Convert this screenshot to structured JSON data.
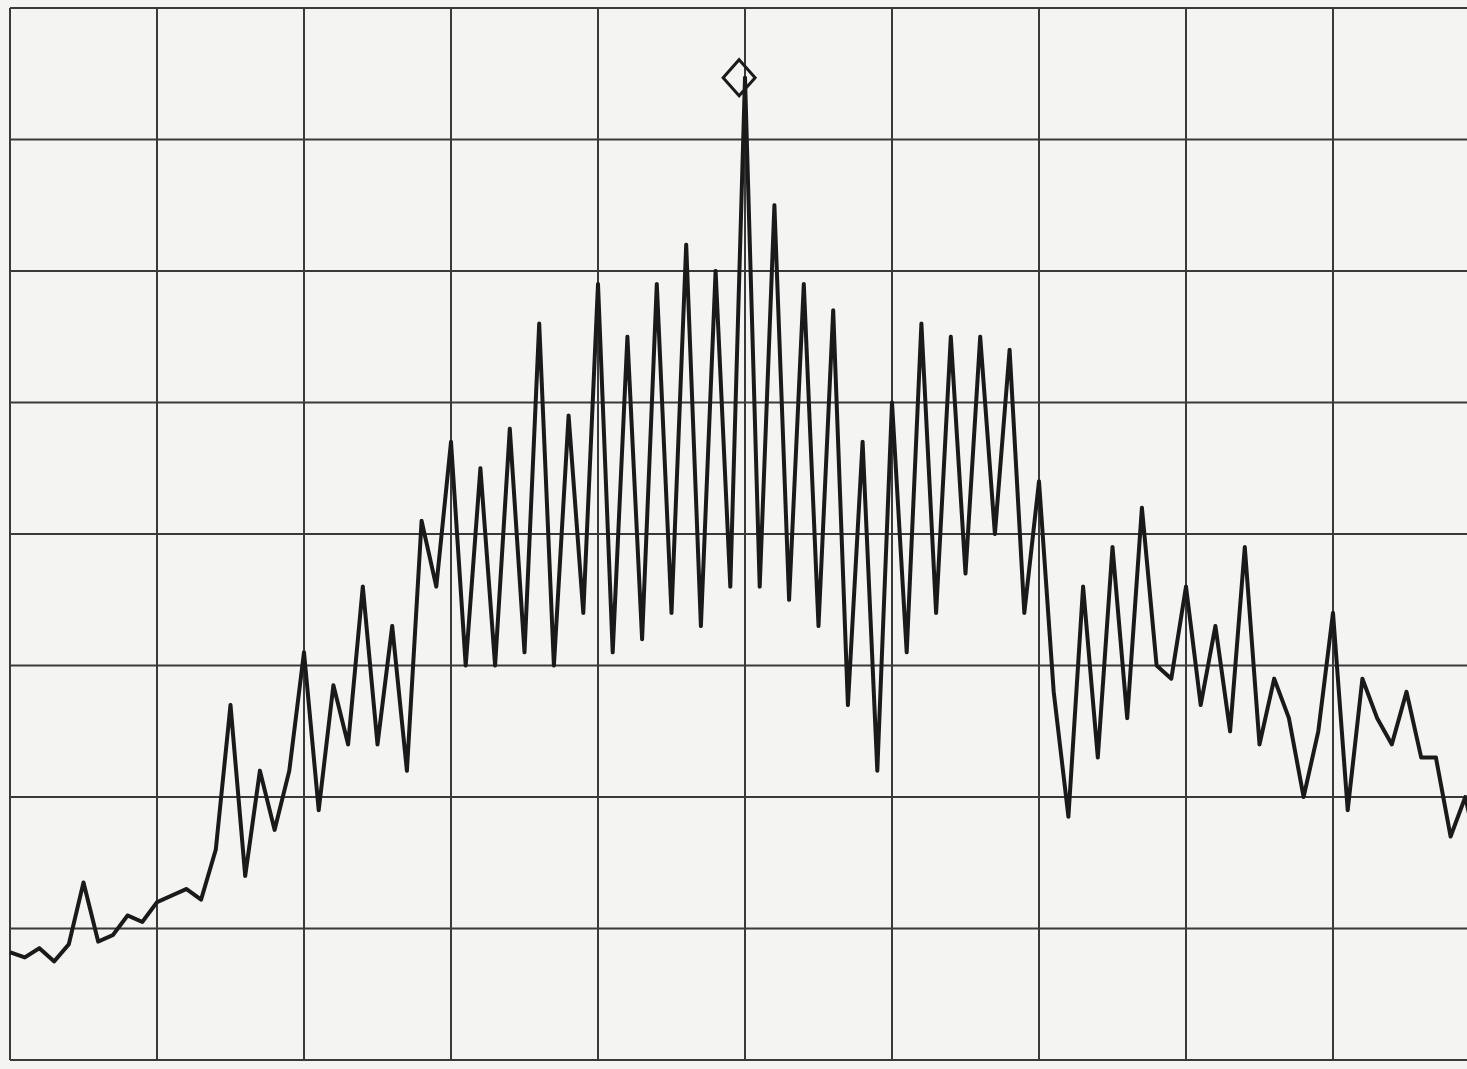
{
  "chart_data": {
    "type": "line",
    "color": "#1a1a1a",
    "grid": true,
    "xlim": [
      0,
      10
    ],
    "ylim": [
      0,
      8
    ],
    "xticks": [
      0,
      1,
      2,
      3,
      4,
      5,
      6,
      7,
      8,
      9,
      10
    ],
    "yticks": [
      0,
      1,
      2,
      3,
      4,
      5,
      6,
      7,
      8
    ],
    "x": [
      0,
      0.1,
      0.2,
      0.3,
      0.4,
      0.5,
      0.6,
      0.7,
      0.8,
      0.9,
      1,
      1.1,
      1.2,
      1.3,
      1.4,
      1.5,
      1.6,
      1.7,
      1.8,
      1.9,
      2,
      2.1,
      2.2,
      2.3,
      2.4,
      2.5,
      2.6,
      2.7,
      2.8,
      2.9,
      3,
      3.1,
      3.2,
      3.3,
      3.4,
      3.5,
      3.6,
      3.7,
      3.8,
      3.9,
      4,
      4.1,
      4.2,
      4.3,
      4.4,
      4.5,
      4.6,
      4.7,
      4.8,
      4.9,
      5,
      5.1,
      5.2,
      5.3,
      5.4,
      5.5,
      5.6,
      5.7,
      5.8,
      5.9,
      6,
      6.1,
      6.2,
      6.3,
      6.4,
      6.5,
      6.6,
      6.7,
      6.8,
      6.9,
      7,
      7.1,
      7.2,
      7.3,
      7.4,
      7.5,
      7.6,
      7.7,
      7.8,
      7.9,
      8,
      8.1,
      8.2,
      8.3,
      8.4,
      8.5,
      8.6,
      8.7,
      8.8,
      8.9,
      9,
      9.1,
      9.2,
      9.3,
      9.4,
      9.5,
      9.6,
      9.7,
      9.8,
      9.9,
      10
    ],
    "values": [
      0.82,
      0.78,
      0.85,
      0.75,
      0.88,
      1.35,
      0.9,
      0.95,
      1.1,
      1.05,
      1.2,
      1.25,
      1.3,
      1.22,
      1.6,
      2.7,
      1.4,
      2.2,
      1.75,
      2.2,
      3.1,
      1.9,
      2.85,
      2.4,
      3.6,
      2.4,
      3.3,
      2.2,
      4.1,
      3.6,
      4.7,
      3.0,
      4.5,
      3.0,
      4.8,
      3.1,
      5.6,
      3.0,
      4.9,
      3.4,
      5.9,
      3.1,
      5.5,
      3.2,
      5.9,
      3.4,
      6.2,
      3.3,
      6.0,
      3.6,
      7.47,
      3.6,
      6.5,
      3.5,
      5.9,
      3.3,
      5.7,
      2.7,
      4.7,
      2.2,
      5.0,
      3.1,
      5.6,
      3.4,
      5.5,
      3.7,
      5.5,
      4.0,
      5.4,
      3.4,
      4.4,
      2.8,
      1.85,
      3.6,
      2.3,
      3.9,
      2.6,
      4.2,
      3.0,
      2.9,
      3.6,
      2.7,
      3.3,
      2.5,
      3.9,
      2.4,
      2.9,
      2.6,
      2.0,
      2.5,
      3.4,
      1.9,
      2.9,
      2.6,
      2.4,
      2.8,
      2.3,
      2.3,
      1.7,
      2.0,
      1.5
    ],
    "marker": {
      "x": 4.96,
      "y": 7.47
    }
  }
}
